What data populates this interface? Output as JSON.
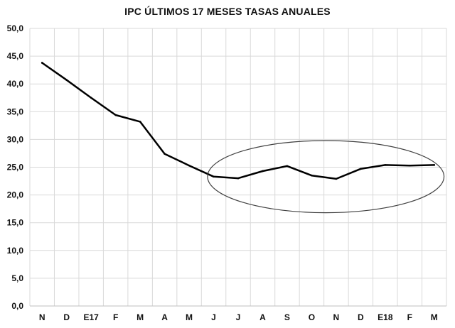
{
  "chart_data": {
    "type": "line",
    "title": "IPC ÚLTIMOS 17 MESES TASAS ANUALES",
    "xlabel": "",
    "ylabel": "",
    "categories": [
      "N",
      "D",
      "E17",
      "F",
      "M",
      "A",
      "M",
      "J",
      "J",
      "A",
      "S",
      "O",
      "N",
      "D",
      "E18",
      "F",
      "M"
    ],
    "series": [
      {
        "values": [
          43.8,
          40.7,
          37.5,
          34.4,
          33.2,
          27.4,
          25.3,
          23.3,
          23.0,
          24.3,
          25.2,
          23.5,
          22.9,
          24.7,
          25.4,
          25.3,
          25.4
        ],
        "color": "#000000"
      }
    ],
    "ylim": [
      0,
      50
    ],
    "yticks": [
      "0,0",
      "5,0",
      "10,0",
      "15,0",
      "20,0",
      "25,0",
      "30,0",
      "35,0",
      "40,0",
      "45,0",
      "50,0"
    ],
    "grid": true,
    "legend": "none",
    "highlight_ellipse": {
      "x_from": "J",
      "x_to": "M",
      "y_from": 16.8,
      "y_to": 29.8
    },
    "colors": {
      "grid": "#d9d9d9",
      "line": "#000000",
      "ellipse": "#404040"
    }
  }
}
